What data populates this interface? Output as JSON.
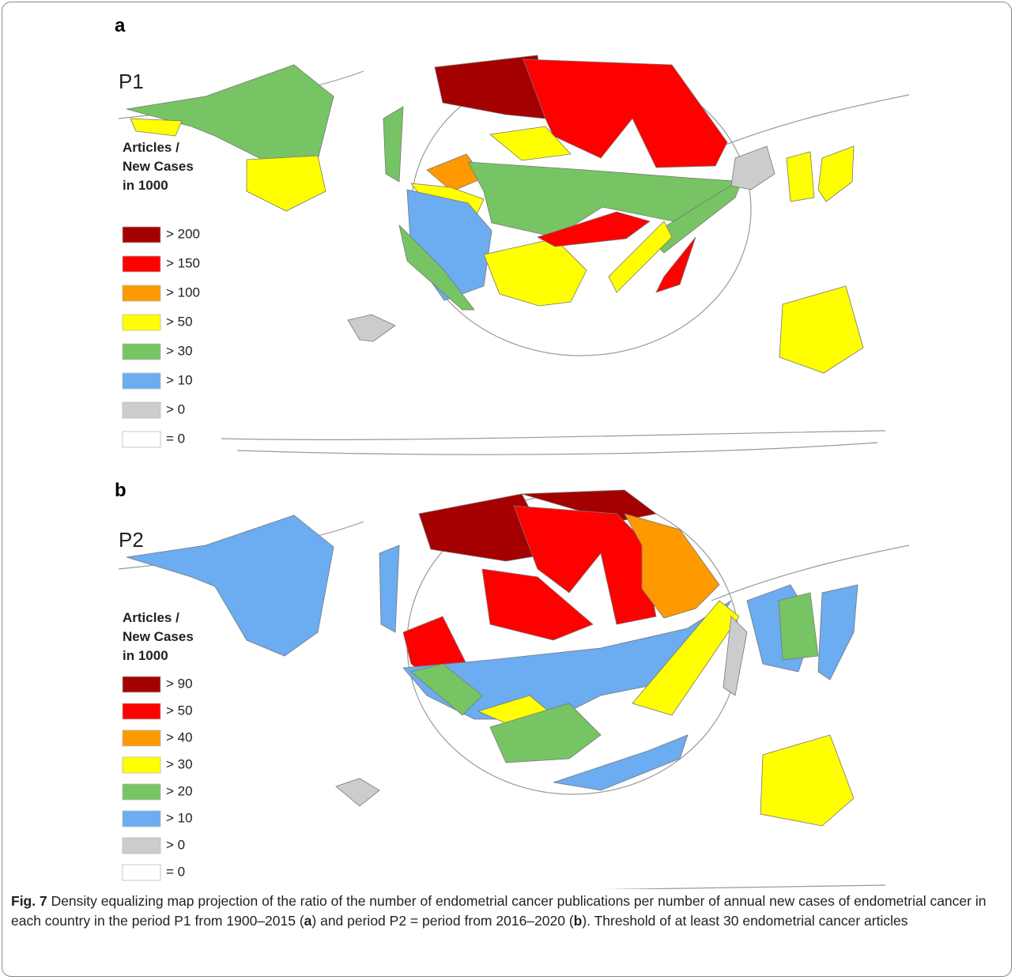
{
  "panels": [
    {
      "label": "a",
      "period": "P1",
      "legend": {
        "title": [
          "Articles /",
          "New Cases",
          "in 1000"
        ],
        "items": [
          {
            "label": "> 200",
            "color": "#a50000"
          },
          {
            "label": "> 150",
            "color": "#ff0000"
          },
          {
            "label": "> 100",
            "color": "#ff9900"
          },
          {
            "label": "> 50",
            "color": "#ffff00"
          },
          {
            "label": "> 30",
            "color": "#77c464"
          },
          {
            "label": "> 10",
            "color": "#6cacf0"
          },
          {
            "label": "> 0",
            "color": "#cccccc"
          },
          {
            "label": "= 0",
            "color": "#ffffff"
          }
        ]
      }
    },
    {
      "label": "b",
      "period": "P2",
      "legend": {
        "title": [
          "Articles /",
          "New Cases",
          "in 1000"
        ],
        "items": [
          {
            "label": "> 90",
            "color": "#a50000"
          },
          {
            "label": "> 50",
            "color": "#ff0000"
          },
          {
            "label": "> 40",
            "color": "#ff9900"
          },
          {
            "label": "> 30",
            "color": "#ffff00"
          },
          {
            "label": "> 20",
            "color": "#77c464"
          },
          {
            "label": "> 10",
            "color": "#6cacf0"
          },
          {
            "label": "> 0",
            "color": "#cccccc"
          },
          {
            "label": "= 0",
            "color": "#ffffff"
          }
        ]
      }
    }
  ],
  "caption": {
    "figure": "Fig. 7",
    "parts": [
      {
        "text": " Density equalizing map projection of the ratio of the number of endometrial cancer publications per number of annual new cases of endometrial cancer in each country in the period P1 from 1900–2015 (",
        "bold": false
      },
      {
        "text": "a",
        "bold": true
      },
      {
        "text": ") and period P2 = period from 2016–2020 (",
        "bold": false
      },
      {
        "text": "b",
        "bold": true
      },
      {
        "text": "). Threshold of at least 30 endometrial cancer articles",
        "bold": false
      }
    ]
  }
}
